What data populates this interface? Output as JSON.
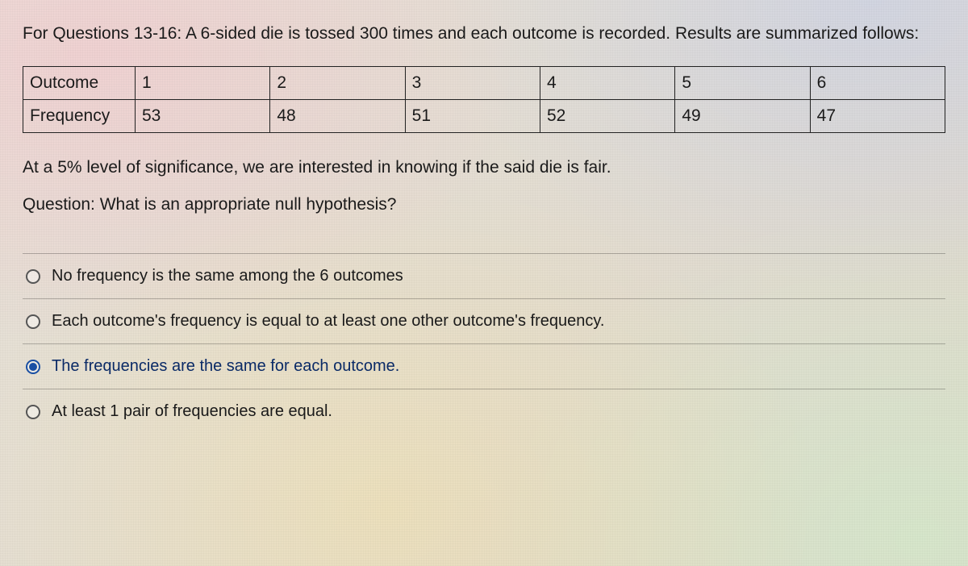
{
  "intro": "For Questions 13-16: A 6-sided die is tossed 300 times and each outcome is recorded. Results are summarized follows:",
  "table": {
    "row_headers": [
      "Outcome",
      "Frequency"
    ],
    "outcomes": [
      "1",
      "2",
      "3",
      "4",
      "5",
      "6"
    ],
    "frequencies": [
      "53",
      "48",
      "51",
      "52",
      "49",
      "47"
    ],
    "border_color": "#222222",
    "cell_fontsize": 21
  },
  "statement": "At a 5% level of significance, we are interested in knowing if the said die is fair.",
  "question": "Question: What is an appropriate null hypothesis?",
  "options": [
    {
      "label": "No frequency is the same among the 6 outcomes",
      "selected": false
    },
    {
      "label": "Each outcome's frequency is equal to at least one other outcome's frequency.",
      "selected": false
    },
    {
      "label": "The frequencies are the same for each outcome.",
      "selected": true
    },
    {
      "label": "At least 1 pair of frequencies are equal.",
      "selected": false
    }
  ],
  "colors": {
    "text": "#1a1a1a",
    "accent": "#1a4fa3",
    "divider": "rgba(0,0,0,0.25)"
  },
  "typography": {
    "body_fontsize": 21,
    "option_fontsize": 20,
    "font_family": "Arial"
  }
}
